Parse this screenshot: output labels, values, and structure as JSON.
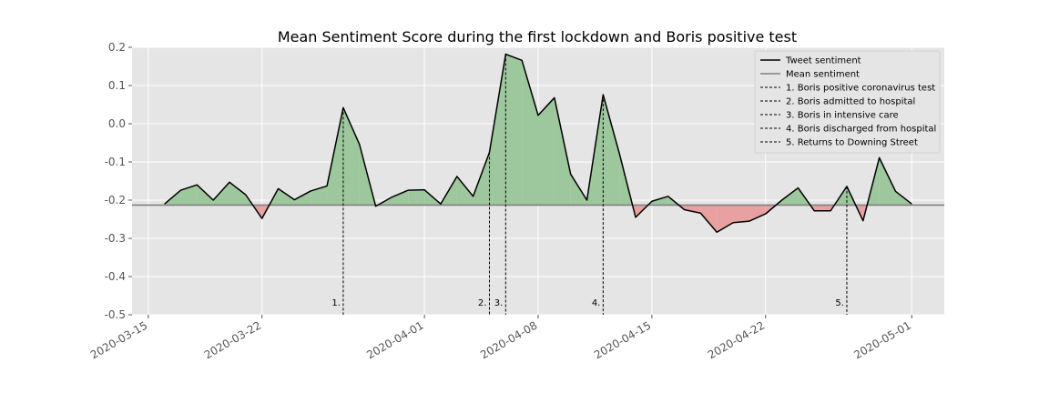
{
  "chart_data": {
    "type": "line",
    "title": "Mean Sentiment Score during the first lockdown and Boris positive test",
    "xlabel": "",
    "ylabel": "",
    "xlim": [
      "2020-03-14",
      "2020-05-03"
    ],
    "ylim": [
      -0.5,
      0.2
    ],
    "grid": true,
    "legend_position": "top-right",
    "x_ticks": [
      "2020-03-15",
      "2020-03-22",
      "2020-04-01",
      "2020-04-08",
      "2020-04-15",
      "2020-04-22",
      "2020-05-01"
    ],
    "y_ticks": [
      0.2,
      0.1,
      0.0,
      -0.1,
      -0.2,
      -0.3,
      -0.4,
      -0.5
    ],
    "mean": -0.213,
    "series": [
      {
        "name": "Tweet sentiment",
        "color": "#000000",
        "x": [
          "2020-03-16",
          "2020-03-17",
          "2020-03-18",
          "2020-03-19",
          "2020-03-20",
          "2020-03-21",
          "2020-03-22",
          "2020-03-23",
          "2020-03-24",
          "2020-03-25",
          "2020-03-26",
          "2020-03-27",
          "2020-03-28",
          "2020-03-29",
          "2020-03-30",
          "2020-03-31",
          "2020-04-01",
          "2020-04-02",
          "2020-04-03",
          "2020-04-04",
          "2020-04-05",
          "2020-04-06",
          "2020-04-07",
          "2020-04-08",
          "2020-04-09",
          "2020-04-10",
          "2020-04-11",
          "2020-04-12",
          "2020-04-13",
          "2020-04-14",
          "2020-04-15",
          "2020-04-16",
          "2020-04-17",
          "2020-04-18",
          "2020-04-19",
          "2020-04-20",
          "2020-04-21",
          "2020-04-22",
          "2020-04-23",
          "2020-04-24",
          "2020-04-25",
          "2020-04-26",
          "2020-04-27",
          "2020-04-28",
          "2020-04-29",
          "2020-04-30",
          "2020-05-01"
        ],
        "y": [
          -0.21,
          -0.174,
          -0.16,
          -0.2,
          -0.153,
          -0.186,
          -0.248,
          -0.17,
          -0.199,
          -0.176,
          -0.163,
          0.042,
          -0.054,
          -0.216,
          -0.192,
          -0.174,
          -0.173,
          -0.21,
          -0.138,
          -0.19,
          -0.075,
          0.182,
          0.166,
          0.022,
          0.068,
          -0.132,
          -0.2,
          0.076,
          -0.078,
          -0.245,
          -0.203,
          -0.19,
          -0.225,
          -0.234,
          -0.284,
          -0.259,
          -0.255,
          -0.236,
          -0.2,
          -0.168,
          -0.228,
          -0.228,
          -0.164,
          -0.254,
          -0.089,
          -0.177,
          -0.21
        ]
      },
      {
        "name": "Mean sentiment",
        "color": "#808080"
      }
    ],
    "fill_above_color": "#9dc79d",
    "fill_below_color": "#e9a0a0",
    "events": [
      {
        "label": "1.",
        "legend": "1. Boris positive coronavirus test",
        "date": "2020-03-27"
      },
      {
        "label": "2.",
        "legend": "2. Boris admitted to hospital",
        "date": "2020-04-05"
      },
      {
        "label": "3.",
        "legend": "3. Boris in intensive care",
        "date": "2020-04-06"
      },
      {
        "label": "4.",
        "legend": "4. Boris discharged from hospital",
        "date": "2020-04-12"
      },
      {
        "label": "5.",
        "legend": "5. Returns to Downing Street",
        "date": "2020-04-27"
      }
    ]
  }
}
